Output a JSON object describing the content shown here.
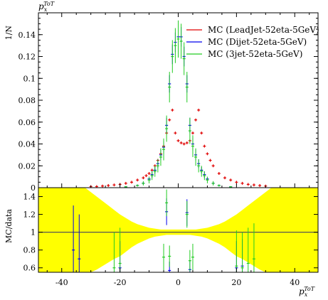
{
  "chart_data": [
    {
      "type": "scatter",
      "panel": "main",
      "ylabel": "1/N",
      "xlabel_top": "p_x^{ToT}",
      "xlim": [
        -48,
        48
      ],
      "ylim": [
        0,
        0.16
      ],
      "y_ticks": [
        "0",
        "0.02",
        "0.04",
        "0.06",
        "0.08",
        "0.1",
        "0.12",
        "0.14"
      ],
      "legend_position": "top-right",
      "legend": [
        {
          "label": "MC (LeadJet-52eta-5GeV)",
          "color": "#e00000"
        },
        {
          "label": "MC (Dijet-52eta-5GeV)",
          "color": "#0000ee"
        },
        {
          "label": "MC (3jet-52eta-5GeV)",
          "color": "#22cc22"
        }
      ],
      "series": [
        {
          "name": "MC (LeadJet-52eta-5GeV)",
          "color": "#e00000",
          "x": [
            -30,
            -28,
            -26,
            -24,
            -22,
            -20,
            -18,
            -16,
            -14,
            -12,
            -11,
            -10,
            -9,
            -8,
            -7,
            -6,
            -5,
            -4,
            -3,
            -2,
            -1,
            0,
            1,
            2,
            3,
            4,
            5,
            6,
            7,
            8,
            9,
            10,
            11,
            12,
            14,
            16,
            18,
            20,
            22,
            24,
            26,
            28,
            30
          ],
          "y": [
            0.001,
            0.001,
            0.0015,
            0.002,
            0.0025,
            0.003,
            0.004,
            0.005,
            0.007,
            0.009,
            0.011,
            0.013,
            0.016,
            0.02,
            0.025,
            0.031,
            0.038,
            0.05,
            0.062,
            0.071,
            0.05,
            0.043,
            0.041,
            0.04,
            0.041,
            0.043,
            0.05,
            0.062,
            0.071,
            0.05,
            0.038,
            0.031,
            0.025,
            0.02,
            0.013,
            0.009,
            0.007,
            0.005,
            0.004,
            0.003,
            0.0025,
            0.002,
            0.0015
          ]
        },
        {
          "name": "MC (Dijet-52eta-5GeV)",
          "color": "#0000ee",
          "x": [
            -18,
            -14,
            -12,
            -10,
            -9,
            -8,
            -7,
            -6,
            -5,
            -4,
            -3,
            -2,
            -1,
            0,
            1,
            2,
            3,
            4,
            5,
            6,
            7,
            8,
            9,
            10,
            12,
            14,
            18
          ],
          "y": [
            0.0008,
            0.002,
            0.004,
            0.008,
            0.012,
            0.016,
            0.022,
            0.03,
            0.037,
            0.057,
            0.095,
            0.122,
            0.133,
            0.138,
            0.138,
            0.12,
            0.095,
            0.057,
            0.04,
            0.03,
            0.022,
            0.016,
            0.012,
            0.008,
            0.004,
            0.002,
            0.0008
          ],
          "err": [
            0.0004,
            0.0008,
            0.0012,
            0.002,
            0.003,
            0.003,
            0.004,
            0.005,
            0.006,
            0.007,
            0.008,
            0.009,
            0.009,
            0.009,
            0.009,
            0.009,
            0.008,
            0.007,
            0.006,
            0.005,
            0.004,
            0.003,
            0.003,
            0.002,
            0.0012,
            0.0008,
            0.0004
          ]
        },
        {
          "name": "MC (3jet-52eta-5GeV)",
          "color": "#22cc22",
          "x": [
            -18,
            -14,
            -12,
            -10,
            -9,
            -8,
            -7,
            -6,
            -5,
            -4,
            -3,
            -2,
            -1,
            0,
            1,
            2,
            3,
            4,
            5,
            6,
            7,
            8,
            9,
            10,
            12,
            14,
            18
          ],
          "y": [
            0.0008,
            0.002,
            0.004,
            0.007,
            0.011,
            0.015,
            0.02,
            0.028,
            0.035,
            0.054,
            0.092,
            0.12,
            0.13,
            0.136,
            0.134,
            0.118,
            0.092,
            0.052,
            0.038,
            0.028,
            0.02,
            0.015,
            0.011,
            0.007,
            0.004,
            0.002,
            0.0008
          ],
          "err": [
            0.0006,
            0.001,
            0.002,
            0.003,
            0.004,
            0.005,
            0.006,
            0.008,
            0.01,
            0.012,
            0.014,
            0.015,
            0.016,
            0.017,
            0.016,
            0.015,
            0.014,
            0.012,
            0.01,
            0.008,
            0.006,
            0.005,
            0.004,
            0.003,
            0.002,
            0.001,
            0.0006
          ]
        }
      ]
    },
    {
      "type": "scatter",
      "panel": "ratio",
      "ylabel": "MC/data",
      "xlabel": "p_x^{ToT}",
      "xlim": [
        -48,
        48
      ],
      "ylim": [
        0.55,
        1.5
      ],
      "y_ticks": [
        "0.6",
        "0.8",
        "1",
        "1.2",
        "1.4"
      ],
      "x_ticks": [
        "-40",
        "-20",
        "0",
        "20",
        "40"
      ],
      "reference_line": 1,
      "band_color": "#ffff00",
      "band": {
        "x": [
          -48,
          -44,
          -40,
          -36,
          -32,
          -30,
          -28,
          -26,
          -24,
          -22,
          -20,
          -18,
          -16,
          -14,
          -12,
          -10,
          -8,
          -6,
          -4,
          -2,
          0,
          2,
          4,
          6,
          8,
          10,
          12,
          14,
          16,
          18,
          20,
          22,
          24,
          26,
          28,
          30,
          32,
          36,
          40,
          44,
          48
        ],
        "lo": [
          0.55,
          0.55,
          0.55,
          0.55,
          0.55,
          0.55,
          0.58,
          0.62,
          0.66,
          0.7,
          0.73,
          0.78,
          0.83,
          0.87,
          0.9,
          0.93,
          0.95,
          0.96,
          0.97,
          0.97,
          0.97,
          0.97,
          0.97,
          0.96,
          0.95,
          0.93,
          0.9,
          0.87,
          0.83,
          0.78,
          0.73,
          0.7,
          0.66,
          0.62,
          0.58,
          0.55,
          0.55,
          0.55,
          0.55,
          0.55,
          0.55
        ],
        "hi": [
          1.5,
          1.5,
          1.5,
          1.5,
          1.5,
          1.45,
          1.4,
          1.35,
          1.3,
          1.25,
          1.2,
          1.16,
          1.12,
          1.09,
          1.07,
          1.05,
          1.04,
          1.03,
          1.03,
          1.03,
          1.03,
          1.03,
          1.03,
          1.03,
          1.04,
          1.05,
          1.07,
          1.09,
          1.12,
          1.16,
          1.2,
          1.25,
          1.3,
          1.35,
          1.4,
          1.45,
          1.5,
          1.5,
          1.5,
          1.5,
          1.5
        ]
      },
      "series": [
        {
          "name": "MC (Dijet-52eta-5GeV)",
          "color": "#0000ee",
          "x": [
            -36,
            -34,
            -20,
            -4,
            -3,
            3,
            4,
            20,
            22
          ],
          "y": [
            0.8,
            0.7,
            0.6,
            1.23,
            0.57,
            1.22,
            0.58,
            0.6,
            0.62
          ],
          "err": [
            0.5,
            0.5,
            0.3,
            0.15,
            0.1,
            0.15,
            0.1,
            0.3,
            0.3
          ]
        },
        {
          "name": "MC (3jet-52eta-5GeV)",
          "color": "#22cc22",
          "x": [
            -22,
            -20,
            -5,
            -4,
            -3,
            3,
            4,
            5,
            20,
            22,
            24,
            26
          ],
          "y": [
            0.6,
            0.65,
            0.72,
            1.33,
            0.73,
            1.2,
            0.68,
            0.72,
            0.62,
            0.6,
            0.65,
            0.7
          ],
          "err": [
            0.4,
            0.4,
            0.15,
            0.15,
            0.12,
            0.15,
            0.12,
            0.15,
            0.4,
            0.4,
            0.4,
            0.4
          ]
        }
      ]
    }
  ]
}
